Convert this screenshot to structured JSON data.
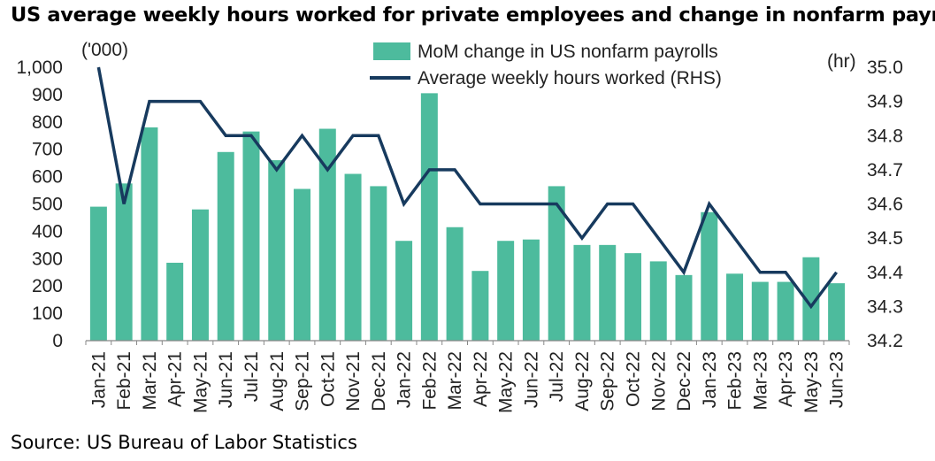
{
  "title": "US average weekly hours worked for private employees and change in nonfarm payrolls",
  "source": "Source: US Bureau of Labor Statistics",
  "colors": {
    "bars": "#4dbb9d",
    "line": "#173a5e",
    "axis": "#888888",
    "text": "#222222"
  },
  "chart_data": {
    "type": "bar",
    "categories": [
      "Jan-21",
      "Feb-21",
      "Mar-21",
      "Apr-21",
      "May-21",
      "Jun-21",
      "Jul-21",
      "Aug-21",
      "Sep-21",
      "Oct-21",
      "Nov-21",
      "Dec-21",
      "Jan-22",
      "Feb-22",
      "Mar-22",
      "Apr-22",
      "May-22",
      "Jun-22",
      "Jul-22",
      "Aug-22",
      "Sep-22",
      "Oct-22",
      "Nov-22",
      "Dec-22",
      "Jan-23",
      "Feb-23",
      "Mar-23",
      "Apr-23",
      "May-23",
      "Jun-23"
    ],
    "series": [
      {
        "name": "MoM change in US nonfarm payrolls",
        "type": "bar",
        "axis": "left",
        "values": [
          490,
          575,
          780,
          285,
          480,
          690,
          765,
          660,
          555,
          775,
          610,
          565,
          365,
          905,
          415,
          255,
          365,
          370,
          565,
          350,
          350,
          320,
          290,
          240,
          470,
          245,
          215,
          215,
          305,
          210
        ]
      },
      {
        "name": "Average weekly hours worked (RHS)",
        "type": "line",
        "axis": "right",
        "values": [
          35.0,
          34.6,
          34.9,
          34.9,
          34.9,
          34.8,
          34.8,
          34.7,
          34.8,
          34.7,
          34.8,
          34.8,
          34.6,
          34.7,
          34.7,
          34.6,
          34.6,
          34.6,
          34.6,
          34.5,
          34.6,
          34.6,
          34.5,
          34.4,
          34.6,
          34.5,
          34.4,
          34.4,
          34.3,
          34.4
        ]
      }
    ],
    "left_axis": {
      "unit": "('000)",
      "ylim": [
        0,
        1000
      ],
      "ticks": [
        0,
        100,
        200,
        300,
        400,
        500,
        600,
        700,
        800,
        900,
        1000
      ],
      "tick_labels": [
        "0",
        "100",
        "200",
        "300",
        "400",
        "500",
        "600",
        "700",
        "800",
        "900",
        "1,000"
      ]
    },
    "right_axis": {
      "unit": "(hr)",
      "ylim": [
        34.2,
        35.0
      ],
      "ticks": [
        34.2,
        34.3,
        34.4,
        34.5,
        34.6,
        34.7,
        34.8,
        34.9,
        35.0
      ],
      "tick_labels": [
        "34.2",
        "34.3",
        "34.4",
        "34.5",
        "34.6",
        "34.7",
        "34.8",
        "34.9",
        "35.0"
      ]
    },
    "legend_position": "top-center",
    "grid": false
  }
}
